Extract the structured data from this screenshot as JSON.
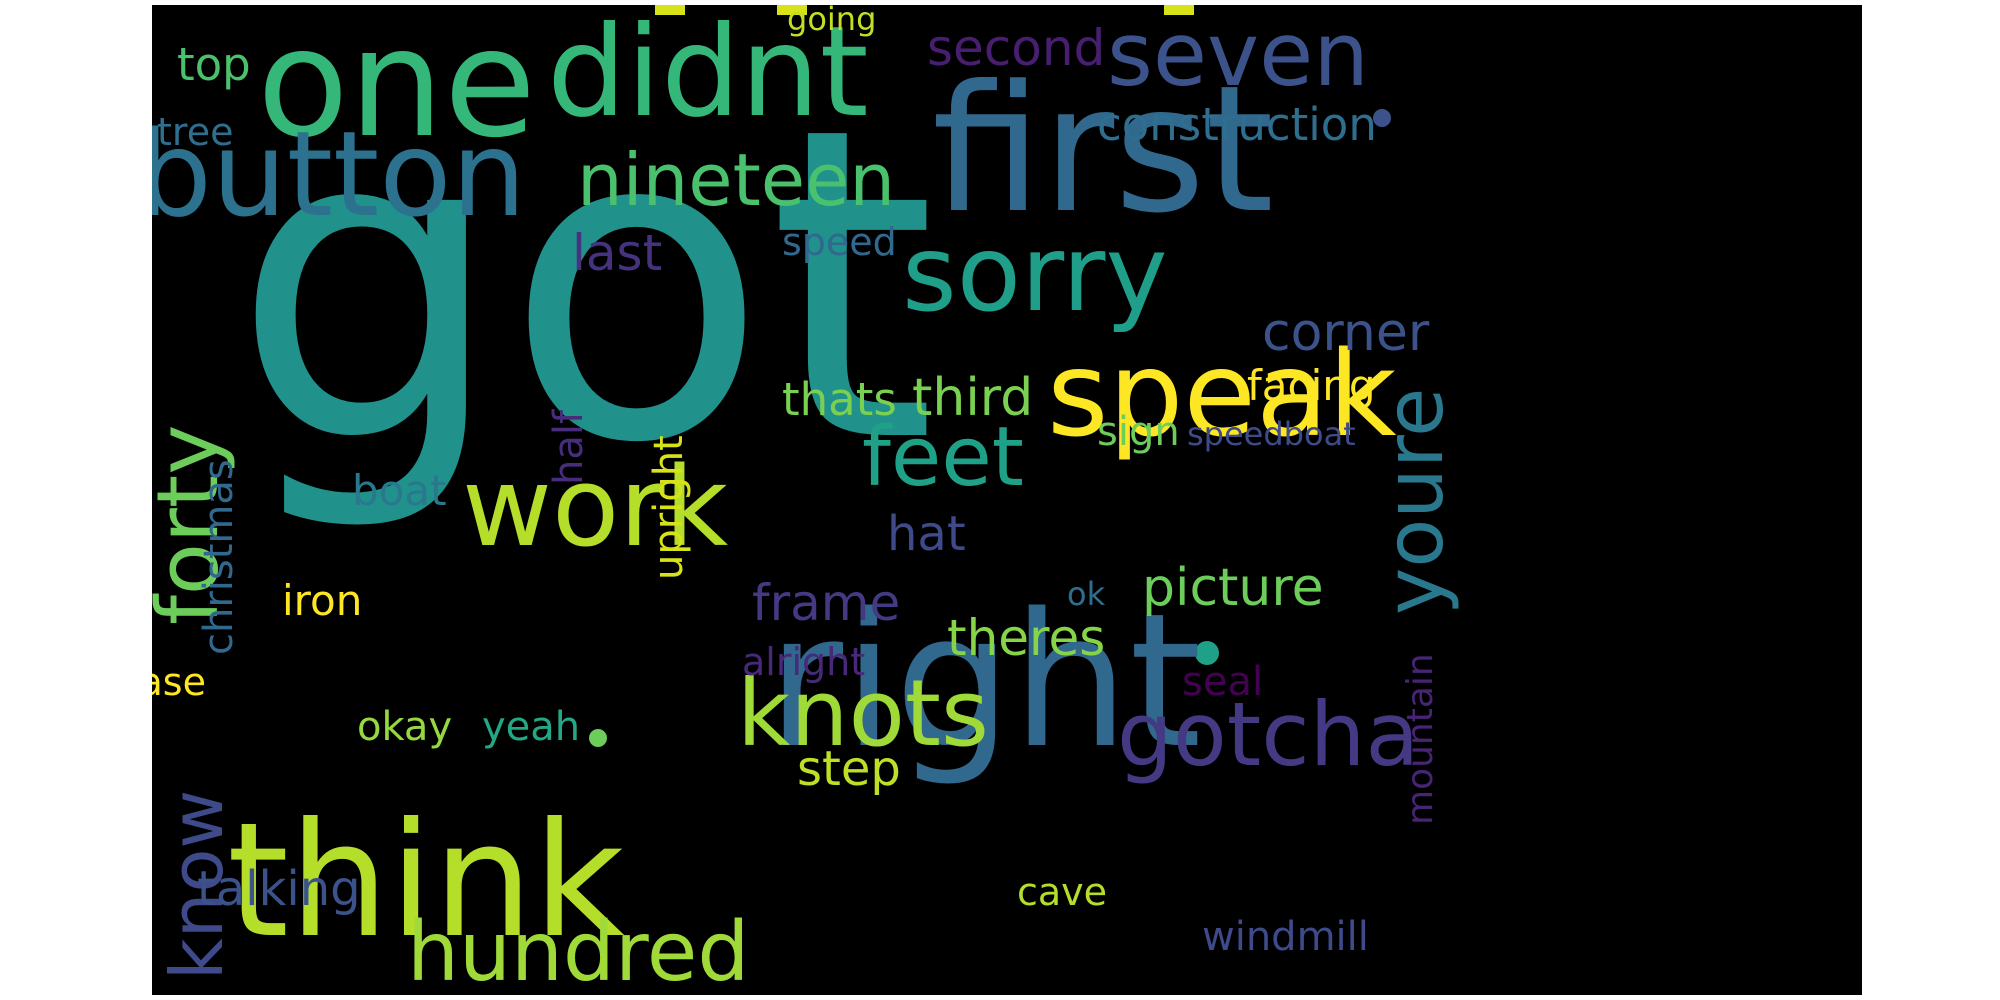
{
  "background": "#000000",
  "words": [
    {
      "text": "got",
      "color": "#21918c"
    },
    {
      "text": "first",
      "color": "#31688e"
    },
    {
      "text": "right",
      "color": "#31688e"
    },
    {
      "text": "think",
      "color": "#b5de2b"
    },
    {
      "text": "one",
      "color": "#35b779"
    },
    {
      "text": "didnt",
      "color": "#35b779"
    },
    {
      "text": "button",
      "color": "#2c728e"
    },
    {
      "text": "speak",
      "color": "#fde725"
    },
    {
      "text": "sorry",
      "color": "#1f9e89"
    },
    {
      "text": "work",
      "color": "#b5de2b"
    },
    {
      "text": "seven",
      "color": "#3b528b"
    },
    {
      "text": "gotcha",
      "color": "#443983"
    },
    {
      "text": "knots",
      "color": "#a0da39"
    },
    {
      "text": "hundred",
      "color": "#a0da39"
    },
    {
      "text": "nineteen",
      "color": "#4ac16d"
    },
    {
      "text": "forty",
      "color": "#6ccd5a"
    },
    {
      "text": "feet",
      "color": "#1fa187"
    },
    {
      "text": "youre",
      "color": "#2a788e"
    },
    {
      "text": "know",
      "color": "#3e4a89"
    },
    {
      "text": "second",
      "color": "#481f70"
    },
    {
      "text": "top",
      "color": "#4ac16d"
    },
    {
      "text": "construction",
      "color": "#2e6e8e"
    },
    {
      "text": "tree",
      "color": "#2e6e8e"
    },
    {
      "text": "last",
      "color": "#46327e"
    },
    {
      "text": "speed",
      "color": "#31688e"
    },
    {
      "text": "corner",
      "color": "#3b528b"
    },
    {
      "text": "facing",
      "color": "#fde725"
    },
    {
      "text": "third",
      "color": "#7ad151"
    },
    {
      "text": "thats",
      "color": "#7ad151"
    },
    {
      "text": "sign",
      "color": "#6ccd5a"
    },
    {
      "text": "speedboat",
      "color": "#3e4a89"
    },
    {
      "text": "christmas",
      "color": "#31688e"
    },
    {
      "text": "half",
      "color": "#472d7b"
    },
    {
      "text": "upright",
      "color": "#d8e219"
    },
    {
      "text": "boat",
      "color": "#2a788e"
    },
    {
      "text": "hat",
      "color": "#3e4a89"
    },
    {
      "text": "picture",
      "color": "#6ccd5a"
    },
    {
      "text": "frame",
      "color": "#443983"
    },
    {
      "text": "iron",
      "color": "#fde725"
    },
    {
      "text": "ok",
      "color": "#2e6e8e"
    },
    {
      "text": "mountain",
      "color": "#482475"
    },
    {
      "text": "theres",
      "color": "#86d549"
    },
    {
      "text": "alright",
      "color": "#482878"
    },
    {
      "text": "seal",
      "color": "#440154"
    },
    {
      "text": "vase",
      "color": "#fde725"
    },
    {
      "text": "okay",
      "color": "#95d840"
    },
    {
      "text": "yeah",
      "color": "#22a884"
    },
    {
      "text": "step",
      "color": "#bddf26"
    },
    {
      "text": "talking",
      "color": "#3b528b"
    },
    {
      "text": "cave",
      "color": "#b5de2b"
    },
    {
      "text": "windmill",
      "color": "#3e4a89"
    },
    {
      "text": "going",
      "color": "#c2df23"
    }
  ]
}
